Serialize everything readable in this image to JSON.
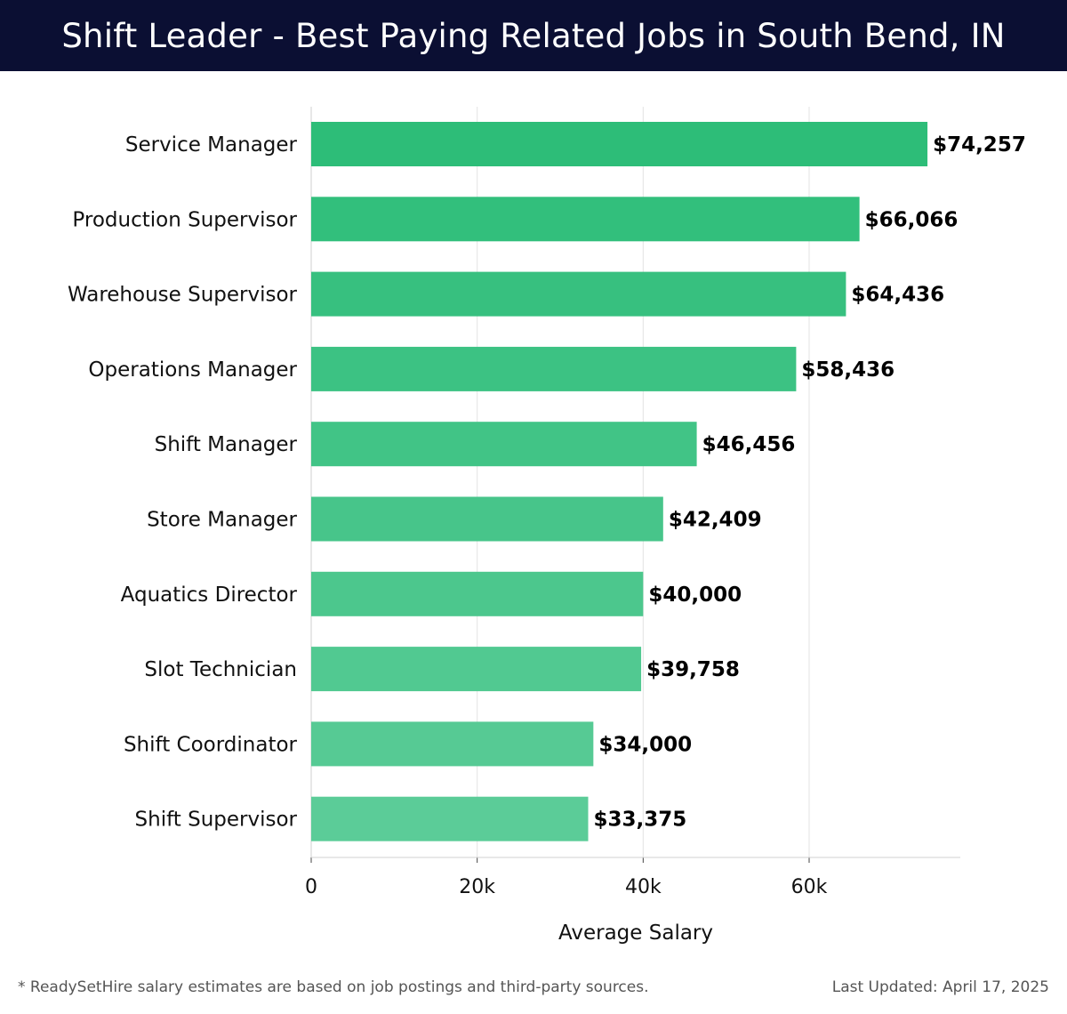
{
  "header": {
    "title": "Shift Leader - Best Paying Related Jobs in South Bend, IN"
  },
  "footer": {
    "note": "* ReadySetHire salary estimates are based on job postings and third-party sources.",
    "updated": "Last Updated: April 17, 2025"
  },
  "colors": {
    "header_bg": "#0b0f33",
    "bar_top": "#2dbd78",
    "bar_bottom": "#5bcc98",
    "grid": "#e3e3e3"
  },
  "chart_data": {
    "type": "bar",
    "orientation": "horizontal",
    "categories": [
      "Service Manager",
      "Production Supervisor",
      "Warehouse Supervisor",
      "Operations Manager",
      "Shift Manager",
      "Store Manager",
      "Aquatics Director",
      "Slot Technician",
      "Shift Coordinator",
      "Shift Supervisor"
    ],
    "values": [
      74257,
      66066,
      64436,
      58436,
      46456,
      42409,
      40000,
      39758,
      34000,
      33375
    ],
    "data_labels": [
      "$74,257",
      "$66,066",
      "$64,436",
      "$58,436",
      "$46,456",
      "$42,409",
      "$40,000",
      "$39,758",
      "$34,000",
      "$33,375"
    ],
    "xlabel": "Average Salary",
    "ylabel": "",
    "xlim": [
      0,
      78000
    ],
    "xticks": [
      0,
      20000,
      40000,
      60000
    ],
    "xtick_labels": [
      "0",
      "20k",
      "40k",
      "60k"
    ],
    "grid": true
  }
}
